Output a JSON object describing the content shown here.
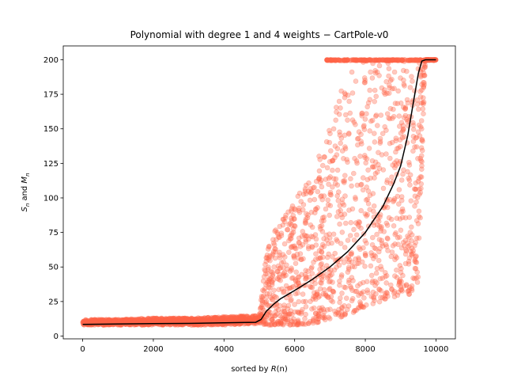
{
  "chart_data": {
    "type": "scatter",
    "title": "Polynomial with degree 1 and 4 weights − CartPole-v0",
    "xlabel_prefix": "sorted by ",
    "xlabel_symbol": "R",
    "xlabel_suffix": "(n)",
    "ylabel_s": "S",
    "ylabel_m": "M",
    "ylabel_sub": "n",
    "ylabel_and": " and ",
    "xlim": [
      -550,
      10550
    ],
    "ylim": [
      -2,
      210
    ],
    "xticks": [
      0,
      2000,
      4000,
      6000,
      8000,
      10000
    ],
    "xtick_labels": [
      "0",
      "2000",
      "4000",
      "6000",
      "8000",
      "10000"
    ],
    "yticks": [
      0,
      25,
      50,
      75,
      100,
      125,
      150,
      175,
      200
    ],
    "ytick_labels": [
      "0",
      "25",
      "50",
      "75",
      "100",
      "125",
      "150",
      "175",
      "200"
    ],
    "scatter_color": "#ff6347",
    "line_color": "#000000",
    "series": [
      {
        "kind": "scatter",
        "description_points": "per-episode scores S_n sorted by R(n)",
        "envelope_x": [
          0,
          1000,
          2000,
          3000,
          4000,
          5000,
          5200,
          5500,
          6000,
          6500,
          7000,
          7500,
          8000,
          8500,
          9000,
          9300,
          9500,
          9700,
          10000
        ],
        "envelope_low": [
          8,
          8,
          8,
          8,
          8,
          9,
          8,
          8,
          8,
          9,
          12,
          15,
          20,
          25,
          30,
          30,
          40,
          200,
          200
        ],
        "envelope_high": [
          12,
          12,
          13,
          13,
          14,
          15,
          60,
          80,
          100,
          115,
          155,
          190,
          200,
          200,
          200,
          200,
          200,
          200,
          200
        ]
      },
      {
        "kind": "line",
        "description_points": "moving mean M_n",
        "x": [
          0,
          1000,
          2000,
          3000,
          4000,
          4500,
          4900,
          5050,
          5200,
          5400,
          5600,
          5800,
          6000,
          6500,
          7000,
          7500,
          8000,
          8500,
          8800,
          9000,
          9200,
          9400,
          9500,
          9600,
          9700,
          10000
        ],
        "y": [
          8.5,
          8.8,
          9.0,
          9.2,
          9.6,
          9.8,
          10.0,
          12,
          18,
          23,
          27,
          30,
          33,
          41,
          50,
          61,
          75,
          94,
          110,
          123,
          145,
          175,
          190,
          199,
          200,
          200
        ]
      }
    ]
  }
}
